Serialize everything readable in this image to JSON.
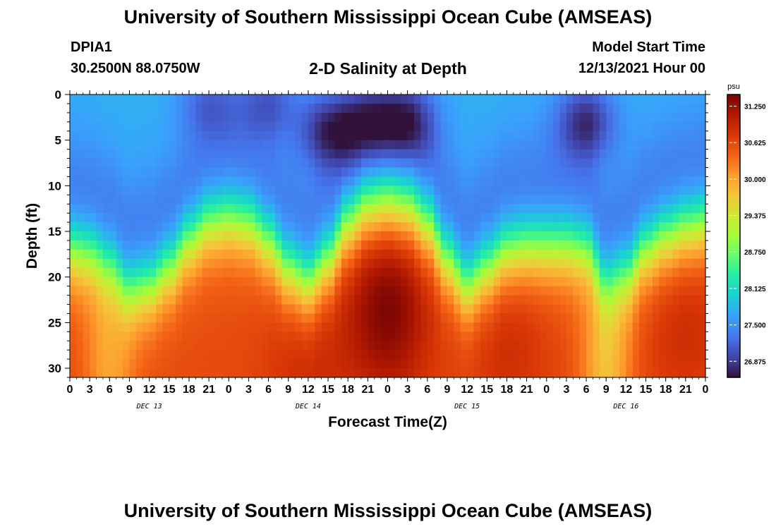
{
  "header": {
    "title": "University of Southern Mississippi Ocean Cube (AMSEAS)",
    "station": "DPIA1",
    "coords": "30.2500N  88.0750W",
    "subtitle": "2-D Salinity at Depth",
    "start_label": "Model Start Time",
    "start_date": "12/13/2021 Hour 00"
  },
  "footer": {
    "title": "University of Southern Mississippi Ocean Cube (AMSEAS)"
  },
  "chart_data": {
    "type": "heatmap",
    "title": "2-D Salinity at Depth",
    "xlabel": "Forecast Time(Z)",
    "ylabel": "Depth (ft)",
    "x_range_hours": [
      0,
      96
    ],
    "x_tick_labels": [
      "0",
      "3",
      "6",
      "9",
      "12",
      "15",
      "18",
      "21",
      "0",
      "3",
      "6",
      "9",
      "12",
      "15",
      "18",
      "21",
      "0",
      "3",
      "6",
      "9",
      "12",
      "15",
      "18",
      "21",
      "0",
      "3",
      "6",
      "9",
      "12",
      "15",
      "18",
      "21",
      "0"
    ],
    "day_labels": [
      "DEC 13",
      "DEC 14",
      "DEC 15",
      "DEC 16"
    ],
    "y_ticks": [
      0,
      5,
      10,
      15,
      20,
      25,
      30
    ],
    "ylim": [
      0,
      31
    ],
    "y_inverted": true,
    "colorbar": {
      "unit": "psu",
      "min": 26.6,
      "max": 31.45,
      "ticks": [
        "31.250",
        "30.625",
        "30.000",
        "29.375",
        "28.750",
        "28.125",
        "27.500",
        "26.875"
      ]
    },
    "colormap": [
      "#30123b",
      "#4145ab",
      "#4675ed",
      "#39a2fc",
      "#1bcfd4",
      "#24eca6",
      "#61fc6c",
      "#a4fc3b",
      "#d1e834",
      "#f3c63a",
      "#fe9b2d",
      "#f36315",
      "#d93806",
      "#b11901",
      "#7a0403"
    ],
    "halocline_depth_ft": [
      {
        "t": 0,
        "depth": 17
      },
      {
        "t": 3,
        "depth": 17.5
      },
      {
        "t": 6,
        "depth": 19
      },
      {
        "t": 9,
        "depth": 21.5
      },
      {
        "t": 12,
        "depth": 21
      },
      {
        "t": 15,
        "depth": 19
      },
      {
        "t": 18,
        "depth": 16
      },
      {
        "t": 21,
        "depth": 14
      },
      {
        "t": 24,
        "depth": 13.5
      },
      {
        "t": 27,
        "depth": 14
      },
      {
        "t": 30,
        "depth": 16
      },
      {
        "t": 33,
        "depth": 19
      },
      {
        "t": 36,
        "depth": 20.5
      },
      {
        "t": 39,
        "depth": 18
      },
      {
        "t": 42,
        "depth": 14
      },
      {
        "t": 45,
        "depth": 12
      },
      {
        "t": 48,
        "depth": 11.5
      },
      {
        "t": 51,
        "depth": 12
      },
      {
        "t": 54,
        "depth": 14
      },
      {
        "t": 57,
        "depth": 18
      },
      {
        "t": 60,
        "depth": 21
      },
      {
        "t": 63,
        "depth": 19
      },
      {
        "t": 66,
        "depth": 17
      },
      {
        "t": 69,
        "depth": 16.5
      },
      {
        "t": 72,
        "depth": 16.5
      },
      {
        "t": 75,
        "depth": 16.5
      },
      {
        "t": 78,
        "depth": 17
      },
      {
        "t": 81,
        "depth": 21
      },
      {
        "t": 84,
        "depth": 20
      },
      {
        "t": 87,
        "depth": 17
      },
      {
        "t": 90,
        "depth": 15.5
      },
      {
        "t": 93,
        "depth": 14.5
      },
      {
        "t": 96,
        "depth": 14
      }
    ],
    "surface_fresh_cores": [
      {
        "t": 21,
        "depth": 1,
        "strength": 0.5
      },
      {
        "t": 30,
        "depth": 1,
        "strength": 0.6
      },
      {
        "t": 39,
        "depth": 4,
        "strength": 0.9
      },
      {
        "t": 45,
        "depth": 3,
        "strength": 0.7
      },
      {
        "t": 51,
        "depth": 3,
        "strength": 0.8
      },
      {
        "t": 78,
        "depth": 3,
        "strength": 0.9
      }
    ],
    "deep_max_cores": [
      {
        "t": 48,
        "depth": 23,
        "value": 31.45
      },
      {
        "t": 36,
        "depth": 29,
        "value": 30.9
      },
      {
        "t": 66,
        "depth": 26,
        "value": 30.9
      },
      {
        "t": 93,
        "depth": 24,
        "value": 30.9
      }
    ],
    "deep_min_cores": [
      {
        "t": 6,
        "depth": 29,
        "value": 30.0
      },
      {
        "t": 81,
        "depth": 30,
        "value": 29.8
      }
    ]
  }
}
